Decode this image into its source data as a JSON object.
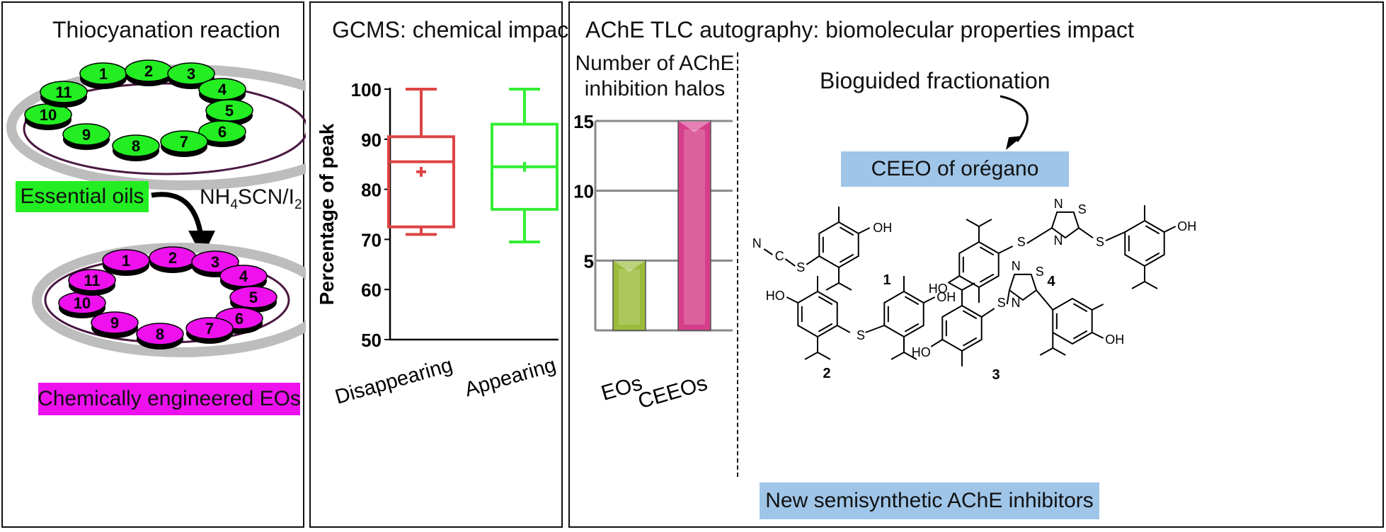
{
  "panel1": {
    "title": "Thiocyanation reaction",
    "input_label": "Essential oils",
    "reagent_main": "NH",
    "reagent_sub1": "4",
    "reagent_mid": "SCN/I",
    "reagent_sub2": "2",
    "output_label": "Chemically engineered EOs",
    "wells": [
      "1",
      "2",
      "3",
      "4",
      "5",
      "6",
      "7",
      "8",
      "9",
      "10",
      "11"
    ],
    "colors": {
      "oil": "#22ee22",
      "engineered": "#ee11ee",
      "oil_label_bg": "#22ee22",
      "engineered_label_bg": "#ee11ee"
    }
  },
  "panel2": {
    "title": "GCMS: chemical impact"
  },
  "panel3": {
    "title": "AChE TLC autography: biomolecular properties impact",
    "subtitle_line1": "Number of AChE",
    "subtitle_line2": "inhibition halos",
    "bioguided": "Bioguided fractionation",
    "ceeo": "CEEO of orégano",
    "new_inhibitors": "New semisynthetic AChE inhibitors",
    "compounds": [
      "1",
      "2",
      "3",
      "4"
    ],
    "atom_labels": {
      "oh": "OH",
      "ho": "HO",
      "s": "S",
      "n": "N",
      "c": "C"
    },
    "colors": {
      "label_bg": "#9fc5e8"
    }
  },
  "chart_data": [
    {
      "type": "box",
      "categories": [
        "Disappearing",
        "Appearing"
      ],
      "series": [
        {
          "min": 71,
          "q1": 72.5,
          "median": 85.5,
          "mean": 83.5,
          "q3": 90.5,
          "max": 100,
          "color": "#dd4444"
        },
        {
          "min": 69.5,
          "q1": 76,
          "median": 84.5,
          "mean": 84.5,
          "q3": 93,
          "max": 100,
          "color": "#33ee33"
        }
      ],
      "ylabel": "Percentage of peak",
      "ylim": [
        50,
        100
      ],
      "yticks": [
        "50",
        "60",
        "70",
        "80",
        "90",
        "100"
      ]
    },
    {
      "type": "bar",
      "categories": [
        "EOs",
        "CEEOs"
      ],
      "values": [
        5,
        15
      ],
      "ylim": [
        0,
        15
      ],
      "yticks": [
        "5",
        "10",
        "15"
      ],
      "colors": [
        "#9bbb3a",
        "#d63d8a"
      ],
      "grid": true
    }
  ]
}
